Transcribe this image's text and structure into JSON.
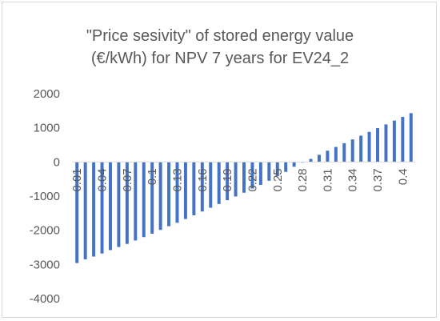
{
  "chart_data": {
    "type": "bar",
    "title_lines": [
      "\"Price sesivity\" of stored energy value",
      "(€/kWh) for NPV 7 years for EV24_2"
    ],
    "xlabel": "",
    "ylabel": "",
    "ylim": [
      -4000,
      2000
    ],
    "y_ticks": [
      "2000",
      "1000",
      "0",
      "-1000",
      "-2000",
      "-3000",
      "-4000"
    ],
    "y_tick_values": [
      2000,
      1000,
      0,
      -1000,
      -2000,
      -3000,
      -4000
    ],
    "grid": false,
    "legend": "none",
    "bar_color": "#4472c4",
    "categories": [
      "0.01",
      "0.02",
      "0.03",
      "0.04",
      "0.05",
      "0.06",
      "0.07",
      "0.08",
      "0.09",
      "0.1",
      "0.11",
      "0.12",
      "0.13",
      "0.14",
      "0.15",
      "0.16",
      "0.17",
      "0.18",
      "0.19",
      "0.2",
      "0.21",
      "0.22",
      "0.23",
      "0.24",
      "0.25",
      "0.26",
      "0.27",
      "0.28",
      "0.29",
      "0.3",
      "0.31",
      "0.32",
      "0.33",
      "0.34",
      "0.35",
      "0.36",
      "0.37",
      "0.38",
      "0.39",
      "0.4",
      "0.41"
    ],
    "x_tick_labels": [
      "0.01",
      "0.04",
      "0.07",
      "0.1",
      "0.13",
      "0.16",
      "0.19",
      "0.22",
      "0.25",
      "0.28",
      "0.31",
      "0.34",
      "0.37",
      "0.4"
    ],
    "values": [
      -2960,
      -2850,
      -2770,
      -2680,
      -2580,
      -2490,
      -2400,
      -2300,
      -2200,
      -2100,
      -1990,
      -1880,
      -1780,
      -1670,
      -1560,
      -1450,
      -1340,
      -1230,
      -1120,
      -1010,
      -900,
      -780,
      -670,
      -550,
      -420,
      -290,
      -140,
      -20,
      90,
      210,
      330,
      440,
      550,
      660,
      770,
      880,
      990,
      1100,
      1210,
      1320,
      1430
    ]
  }
}
